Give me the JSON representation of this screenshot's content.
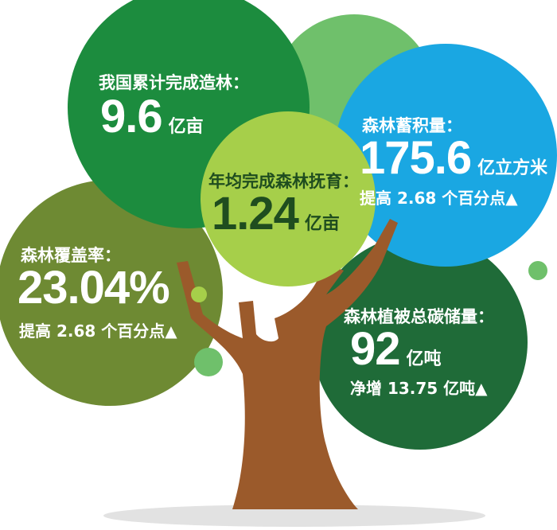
{
  "colors": {
    "afforestation_circle": "#1c8c3e",
    "top_light_circle": "#6fc06b",
    "stock_circle": "#1aa7e2",
    "carbon_circle": "#1f6b38",
    "coverage_circle": "#6e8a33",
    "tending_circle": "#a6cf4a",
    "trunk": "#9b5a2b"
  },
  "afforestation": {
    "label": "我国累计完成造林：",
    "value": "9.6",
    "unit": "亿亩"
  },
  "tending": {
    "label": "年均完成森林抚育：",
    "value": "1.24",
    "unit": "亿亩"
  },
  "stock": {
    "label": "森林蓄积量：",
    "value": "175.6",
    "unit": "亿立方米",
    "change": "提高 2.68 个百分点▲"
  },
  "coverage": {
    "label": "森林覆盖率：",
    "value": "23.04%",
    "change": "提高 2.68 个百分点▲"
  },
  "carbon": {
    "label": "森林植被总碳储量：",
    "value": "92",
    "unit": "亿吨",
    "change": "净增 13.75 亿吨▲"
  }
}
